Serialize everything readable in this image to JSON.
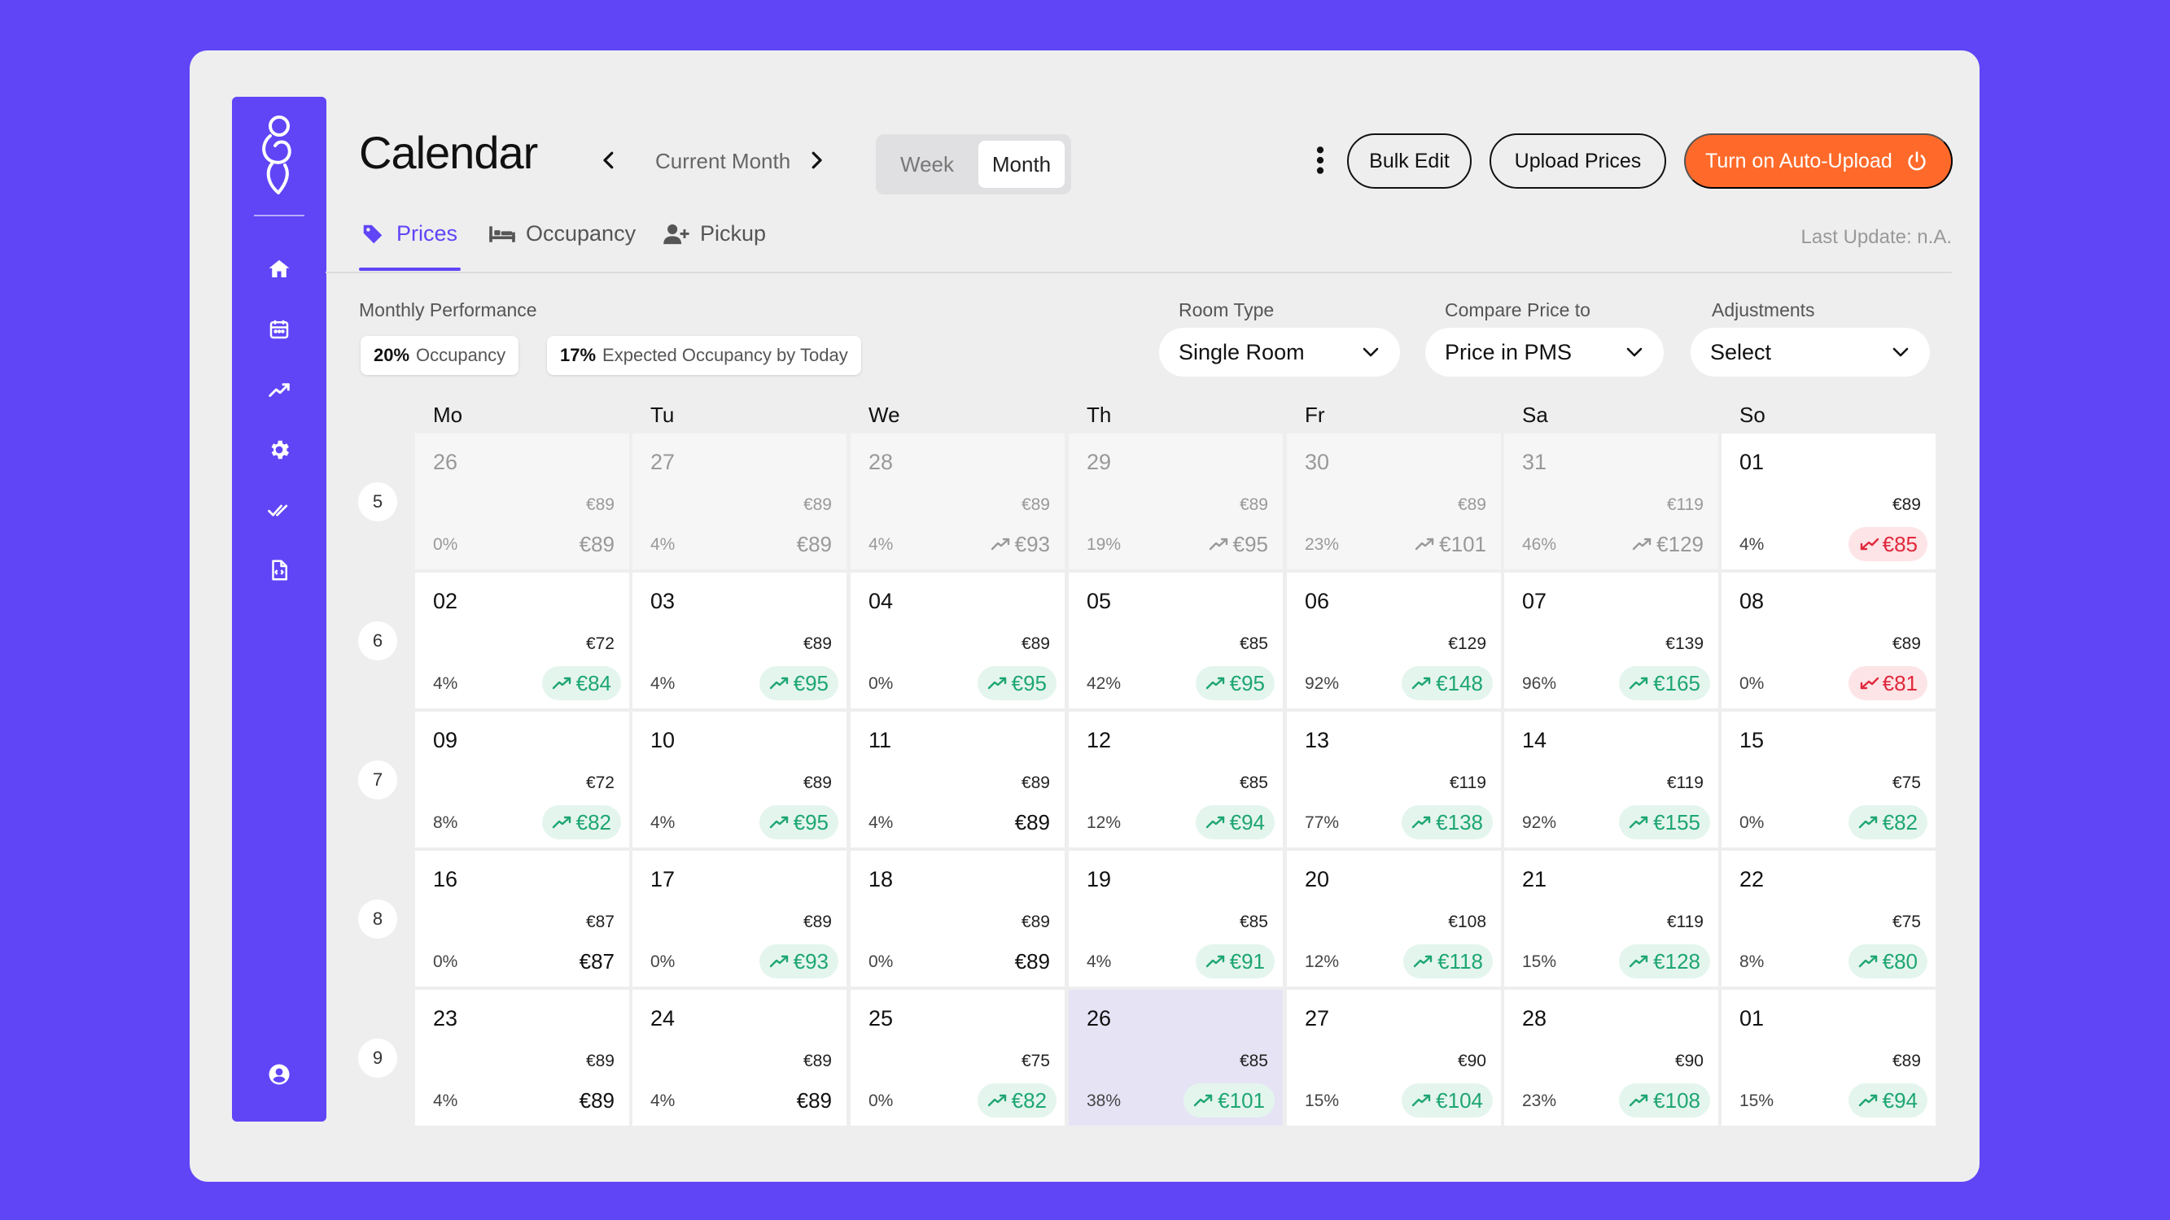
{
  "header": {
    "title": "Calendar",
    "period_label": "Current Month",
    "view_options": [
      "Week",
      "Month"
    ],
    "active_view": "Month",
    "bulk_edit": "Bulk Edit",
    "upload_prices": "Upload Prices",
    "auto_upload": "Turn on Auto-Upload",
    "last_update": "Last Update: n.A."
  },
  "tabs": [
    {
      "label": "Prices",
      "icon": "price-tag-icon",
      "active": true
    },
    {
      "label": "Occupancy",
      "icon": "bed-icon",
      "active": false
    },
    {
      "label": "Pickup",
      "icon": "user-plus-icon",
      "active": false
    }
  ],
  "performance": {
    "label": "Monthly Performance",
    "occupancy_value": "20%",
    "occupancy_label": "Occupancy",
    "expected_value": "17%",
    "expected_label": "Expected Occupancy by Today"
  },
  "filters": {
    "room_type": {
      "label": "Room Type",
      "value": "Single Room"
    },
    "compare": {
      "label": "Compare Price to",
      "value": "Price in PMS"
    },
    "adjustments": {
      "label": "Adjustments",
      "value": "Select"
    }
  },
  "sidebar_icons": [
    "home-icon",
    "calendar-icon",
    "analytics-icon",
    "settings-icon",
    "double-check-icon",
    "document-icon",
    "account-icon"
  ],
  "weekdays": [
    "Mo",
    "Tu",
    "We",
    "Th",
    "Fr",
    "Sa",
    "So"
  ],
  "colors": {
    "accent": "#5F45F6",
    "orange": "#FF6A2A",
    "up": "#1EA672",
    "down": "#E0283C"
  },
  "weeks": [
    {
      "week": "5",
      "days": [
        {
          "day": "26",
          "pms": "€89",
          "occ": "0%",
          "price": "€89",
          "state": "past",
          "trend": "none"
        },
        {
          "day": "27",
          "pms": "€89",
          "occ": "4%",
          "price": "€89",
          "state": "past",
          "trend": "none"
        },
        {
          "day": "28",
          "pms": "€89",
          "occ": "4%",
          "price": "€93",
          "state": "past",
          "trend": "up"
        },
        {
          "day": "29",
          "pms": "€89",
          "occ": "19%",
          "price": "€95",
          "state": "past",
          "trend": "up"
        },
        {
          "day": "30",
          "pms": "€89",
          "occ": "23%",
          "price": "€101",
          "state": "past",
          "trend": "up"
        },
        {
          "day": "31",
          "pms": "€119",
          "occ": "46%",
          "price": "€129",
          "state": "past",
          "trend": "up"
        },
        {
          "day": "01",
          "pms": "€89",
          "occ": "4%",
          "price": "€85",
          "state": "normal",
          "trend": "down"
        }
      ]
    },
    {
      "week": "6",
      "days": [
        {
          "day": "02",
          "pms": "€72",
          "occ": "4%",
          "price": "€84",
          "state": "normal",
          "trend": "up"
        },
        {
          "day": "03",
          "pms": "€89",
          "occ": "4%",
          "price": "€95",
          "state": "normal",
          "trend": "up"
        },
        {
          "day": "04",
          "pms": "€89",
          "occ": "0%",
          "price": "€95",
          "state": "normal",
          "trend": "up"
        },
        {
          "day": "05",
          "pms": "€85",
          "occ": "42%",
          "price": "€95",
          "state": "normal",
          "trend": "up"
        },
        {
          "day": "06",
          "pms": "€129",
          "occ": "92%",
          "price": "€148",
          "state": "normal",
          "trend": "up"
        },
        {
          "day": "07",
          "pms": "€139",
          "occ": "96%",
          "price": "€165",
          "state": "normal",
          "trend": "up"
        },
        {
          "day": "08",
          "pms": "€89",
          "occ": "0%",
          "price": "€81",
          "state": "normal",
          "trend": "down"
        }
      ]
    },
    {
      "week": "7",
      "days": [
        {
          "day": "09",
          "pms": "€72",
          "occ": "8%",
          "price": "€82",
          "state": "normal",
          "trend": "up"
        },
        {
          "day": "10",
          "pms": "€89",
          "occ": "4%",
          "price": "€95",
          "state": "normal",
          "trend": "up"
        },
        {
          "day": "11",
          "pms": "€89",
          "occ": "4%",
          "price": "€89",
          "state": "normal",
          "trend": "none"
        },
        {
          "day": "12",
          "pms": "€85",
          "occ": "12%",
          "price": "€94",
          "state": "normal",
          "trend": "up"
        },
        {
          "day": "13",
          "pms": "€119",
          "occ": "77%",
          "price": "€138",
          "state": "normal",
          "trend": "up"
        },
        {
          "day": "14",
          "pms": "€119",
          "occ": "92%",
          "price": "€155",
          "state": "normal",
          "trend": "up"
        },
        {
          "day": "15",
          "pms": "€75",
          "occ": "0%",
          "price": "€82",
          "state": "normal",
          "trend": "up"
        }
      ]
    },
    {
      "week": "8",
      "days": [
        {
          "day": "16",
          "pms": "€87",
          "occ": "0%",
          "price": "€87",
          "state": "normal",
          "trend": "none"
        },
        {
          "day": "17",
          "pms": "€89",
          "occ": "0%",
          "price": "€93",
          "state": "normal",
          "trend": "up"
        },
        {
          "day": "18",
          "pms": "€89",
          "occ": "0%",
          "price": "€89",
          "state": "normal",
          "trend": "none"
        },
        {
          "day": "19",
          "pms": "€85",
          "occ": "4%",
          "price": "€91",
          "state": "normal",
          "trend": "up"
        },
        {
          "day": "20",
          "pms": "€108",
          "occ": "12%",
          "price": "€118",
          "state": "normal",
          "trend": "up"
        },
        {
          "day": "21",
          "pms": "€119",
          "occ": "15%",
          "price": "€128",
          "state": "normal",
          "trend": "up"
        },
        {
          "day": "22",
          "pms": "€75",
          "occ": "8%",
          "price": "€80",
          "state": "normal",
          "trend": "up"
        }
      ]
    },
    {
      "week": "9",
      "days": [
        {
          "day": "23",
          "pms": "€89",
          "occ": "4%",
          "price": "€89",
          "state": "normal",
          "trend": "none"
        },
        {
          "day": "24",
          "pms": "€89",
          "occ": "4%",
          "price": "€89",
          "state": "normal",
          "trend": "none"
        },
        {
          "day": "25",
          "pms": "€75",
          "occ": "0%",
          "price": "€82",
          "state": "normal",
          "trend": "up"
        },
        {
          "day": "26",
          "pms": "€85",
          "occ": "38%",
          "price": "€101",
          "state": "today",
          "trend": "up"
        },
        {
          "day": "27",
          "pms": "€90",
          "occ": "15%",
          "price": "€104",
          "state": "normal",
          "trend": "up"
        },
        {
          "day": "28",
          "pms": "€90",
          "occ": "23%",
          "price": "€108",
          "state": "normal",
          "trend": "up"
        },
        {
          "day": "01",
          "pms": "€89",
          "occ": "15%",
          "price": "€94",
          "state": "normal",
          "trend": "up"
        }
      ]
    }
  ]
}
